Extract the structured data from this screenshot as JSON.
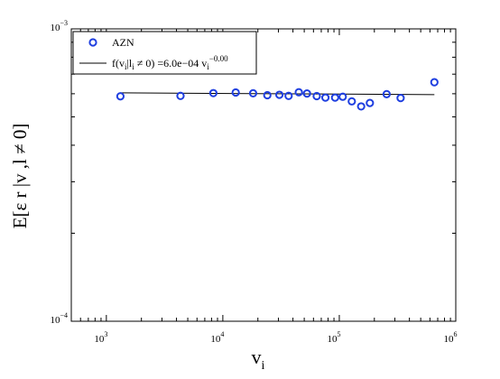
{
  "chart_data": {
    "type": "scatter",
    "xscale": "log",
    "yscale": "log",
    "xlim": [
      500,
      1000000
    ],
    "ylim": [
      0.0001,
      0.001
    ],
    "grid": false,
    "legend_position": "top-left",
    "xlabel": {
      "base": "v",
      "sub": "i"
    },
    "ylabel": "E[ε  r |v ,l ≠ 0]",
    "x_ticks": [
      {
        "value": 1000,
        "base": "10",
        "exp": "3"
      },
      {
        "value": 10000,
        "base": "10",
        "exp": "4"
      },
      {
        "value": 100000,
        "base": "10",
        "exp": "5"
      },
      {
        "value": 1000000,
        "base": "10",
        "exp": "6"
      }
    ],
    "y_ticks": [
      {
        "value": 0.0001,
        "base": "10",
        "exp": "−4"
      },
      {
        "value": 0.001,
        "base": "10",
        "exp": "−3"
      }
    ],
    "series": [
      {
        "name": "AZN",
        "marker": "circle",
        "color": "#1f3fe0",
        "x": [
          1320,
          4330,
          8290,
          12900,
          18200,
          24100,
          30600,
          36700,
          44900,
          52800,
          64000,
          76000,
          92000,
          107000,
          128000,
          154000,
          183000,
          255000,
          336000,
          655000
        ],
        "y": [
          0.000588,
          0.00059,
          0.000603,
          0.000606,
          0.000602,
          0.000593,
          0.000595,
          0.00059,
          0.000607,
          0.000601,
          0.000589,
          0.000582,
          0.000582,
          0.000586,
          0.000565,
          0.000543,
          0.000558,
          0.000598,
          0.00058,
          0.000657
        ]
      }
    ],
    "fit": {
      "color": "#000000",
      "coefficient": 0.0006,
      "exponent": 0.0,
      "x_range": [
        1320,
        655000
      ],
      "legend": {
        "prefix": "f(v",
        "sub1": "i",
        "mid": "|l",
        "sub2": "i",
        "rest": " ≠ 0) =6.0e−04 v",
        "sub3": "i",
        "sup": "−0.00"
      }
    }
  }
}
